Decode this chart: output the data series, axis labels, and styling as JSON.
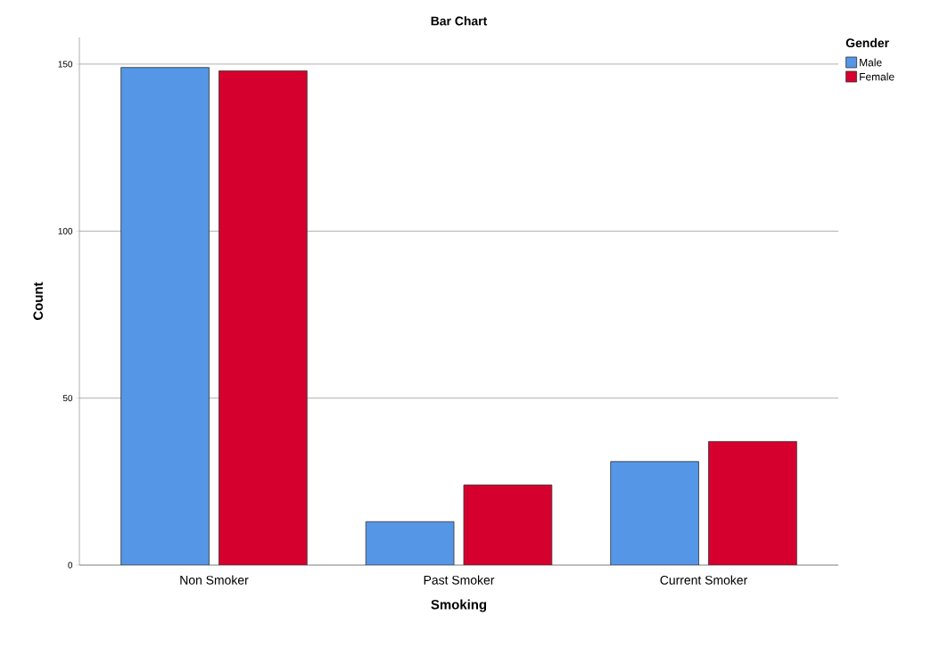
{
  "chart_data": {
    "type": "bar",
    "title": "Bar Chart",
    "xlabel": "Smoking",
    "ylabel": "Count",
    "legend_title": "Gender",
    "categories": [
      "Non Smoker",
      "Past Smoker",
      "Current Smoker"
    ],
    "series": [
      {
        "name": "Male",
        "color": "#5596e6",
        "values": [
          149,
          13,
          31
        ]
      },
      {
        "name": "Female",
        "color": "#d6002e",
        "values": [
          148,
          24,
          37
        ]
      }
    ],
    "ylim": [
      0,
      158
    ],
    "yticks": [
      0,
      50,
      100,
      150
    ],
    "grid": "y",
    "legend": "top right"
  }
}
